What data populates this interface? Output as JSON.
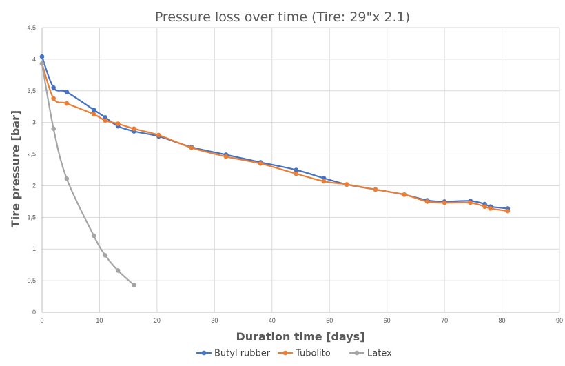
{
  "chart_data": {
    "type": "line",
    "title": "Pressure loss over time (Tire: 29\"x 2.1)",
    "xlabel": "Duration time [days]",
    "ylabel": "Tire pressure [bar]",
    "xlim": [
      0,
      90
    ],
    "ylim": [
      0,
      4.5
    ],
    "x_ticks": [
      "0",
      "10",
      "20",
      "30",
      "40",
      "50",
      "60",
      "70",
      "80",
      "90"
    ],
    "y_ticks": [
      "0",
      "0,5",
      "1",
      "1,5",
      "2",
      "2,5",
      "3",
      "3,5",
      "4",
      "4,5"
    ],
    "grid": true,
    "legend_position": "bottom",
    "series": [
      {
        "name": "Butyl rubber",
        "color": "#4472c4",
        "x": [
          0,
          2,
          4.3,
          9,
          11,
          13.2,
          16,
          20.3,
          26,
          32,
          38,
          44.2,
          49,
          53,
          58,
          63,
          67,
          70,
          74.5,
          77,
          78,
          81
        ],
        "y": [
          4.04,
          3.55,
          3.48,
          3.2,
          3.08,
          2.94,
          2.86,
          2.78,
          2.61,
          2.49,
          2.37,
          2.25,
          2.12,
          2.02,
          1.94,
          1.86,
          1.77,
          1.75,
          1.76,
          1.71,
          1.67,
          1.64
        ]
      },
      {
        "name": "Tubolito",
        "color": "#ed7d31",
        "x": [
          0,
          2,
          4.3,
          9,
          11,
          13.2,
          16,
          20.3,
          26,
          32,
          38,
          44.2,
          49,
          53,
          58,
          63,
          67,
          70,
          74.5,
          77,
          78,
          81
        ],
        "y": [
          3.93,
          3.38,
          3.3,
          3.13,
          3.03,
          2.98,
          2.9,
          2.8,
          2.6,
          2.46,
          2.35,
          2.19,
          2.07,
          2.02,
          1.94,
          1.86,
          1.75,
          1.73,
          1.73,
          1.67,
          1.64,
          1.6
        ]
      },
      {
        "name": "Latex",
        "color": "#a5a5a5",
        "x": [
          0,
          2,
          4.3,
          9,
          11,
          13.2,
          16
        ],
        "y": [
          3.93,
          2.9,
          2.11,
          1.21,
          0.9,
          0.66,
          0.43
        ]
      }
    ],
    "colors": {
      "grid": "#d9d9d9",
      "axis": "#bfbfbf",
      "text": "#595959"
    }
  }
}
